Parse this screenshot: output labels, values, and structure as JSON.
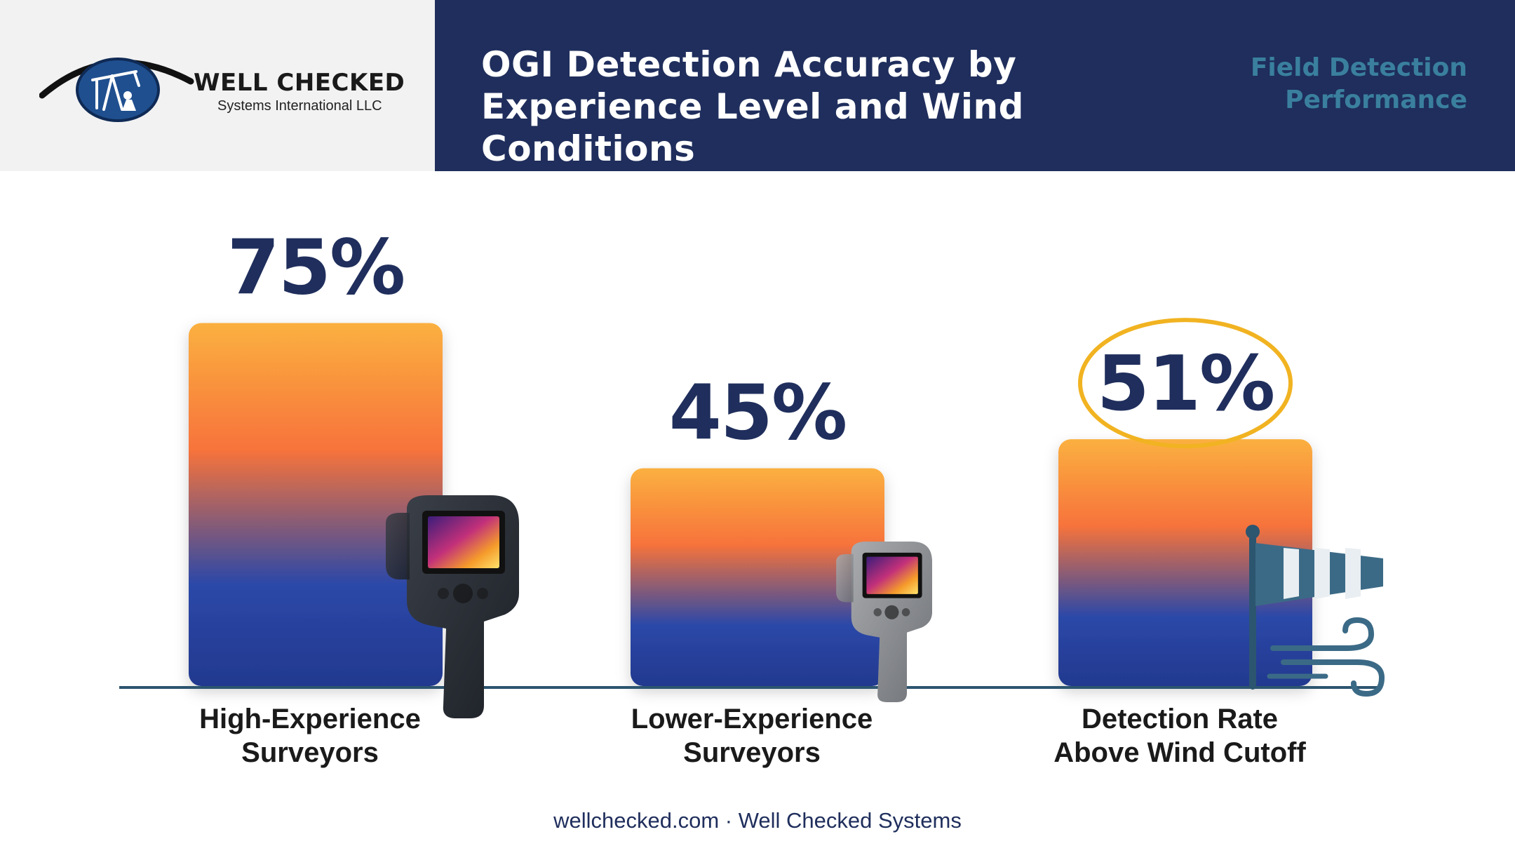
{
  "header": {
    "logo_name": "WELL CHECKED",
    "logo_sub": "Systems International LLC",
    "title": "OGI Detection Accuracy by Experience Level and Wind Conditions",
    "subtitle": "Field Detection Performance"
  },
  "footer": {
    "text": "wellchecked.com · Well Checked Systems"
  },
  "colors": {
    "header_bg": "#1f2e5c",
    "logo_bg": "#f2f2f2",
    "bar_top": "#fbb040",
    "bar_mid": "#f7733b",
    "bar_bottom": "#23398f",
    "value_text": "#1f2e5c",
    "highlight_ring": "#f1b321",
    "baseline": "#2c5570"
  },
  "chart_data": {
    "type": "bar",
    "categories": [
      "High-Experience Surveyors",
      "Lower-Experience Surveyors",
      "Detection Rate Above Wind Cutoff"
    ],
    "values": [
      75,
      45,
      51
    ],
    "value_labels": [
      "75%",
      "45%",
      "51%"
    ],
    "unit": "%",
    "highlighted": "Detection Rate Above Wind Cutoff",
    "ylim": [
      0,
      100
    ],
    "grid": false,
    "legend": "none",
    "icons": [
      "thermal-camera-icon",
      "thermal-camera-icon",
      "windsock-icon"
    ]
  }
}
